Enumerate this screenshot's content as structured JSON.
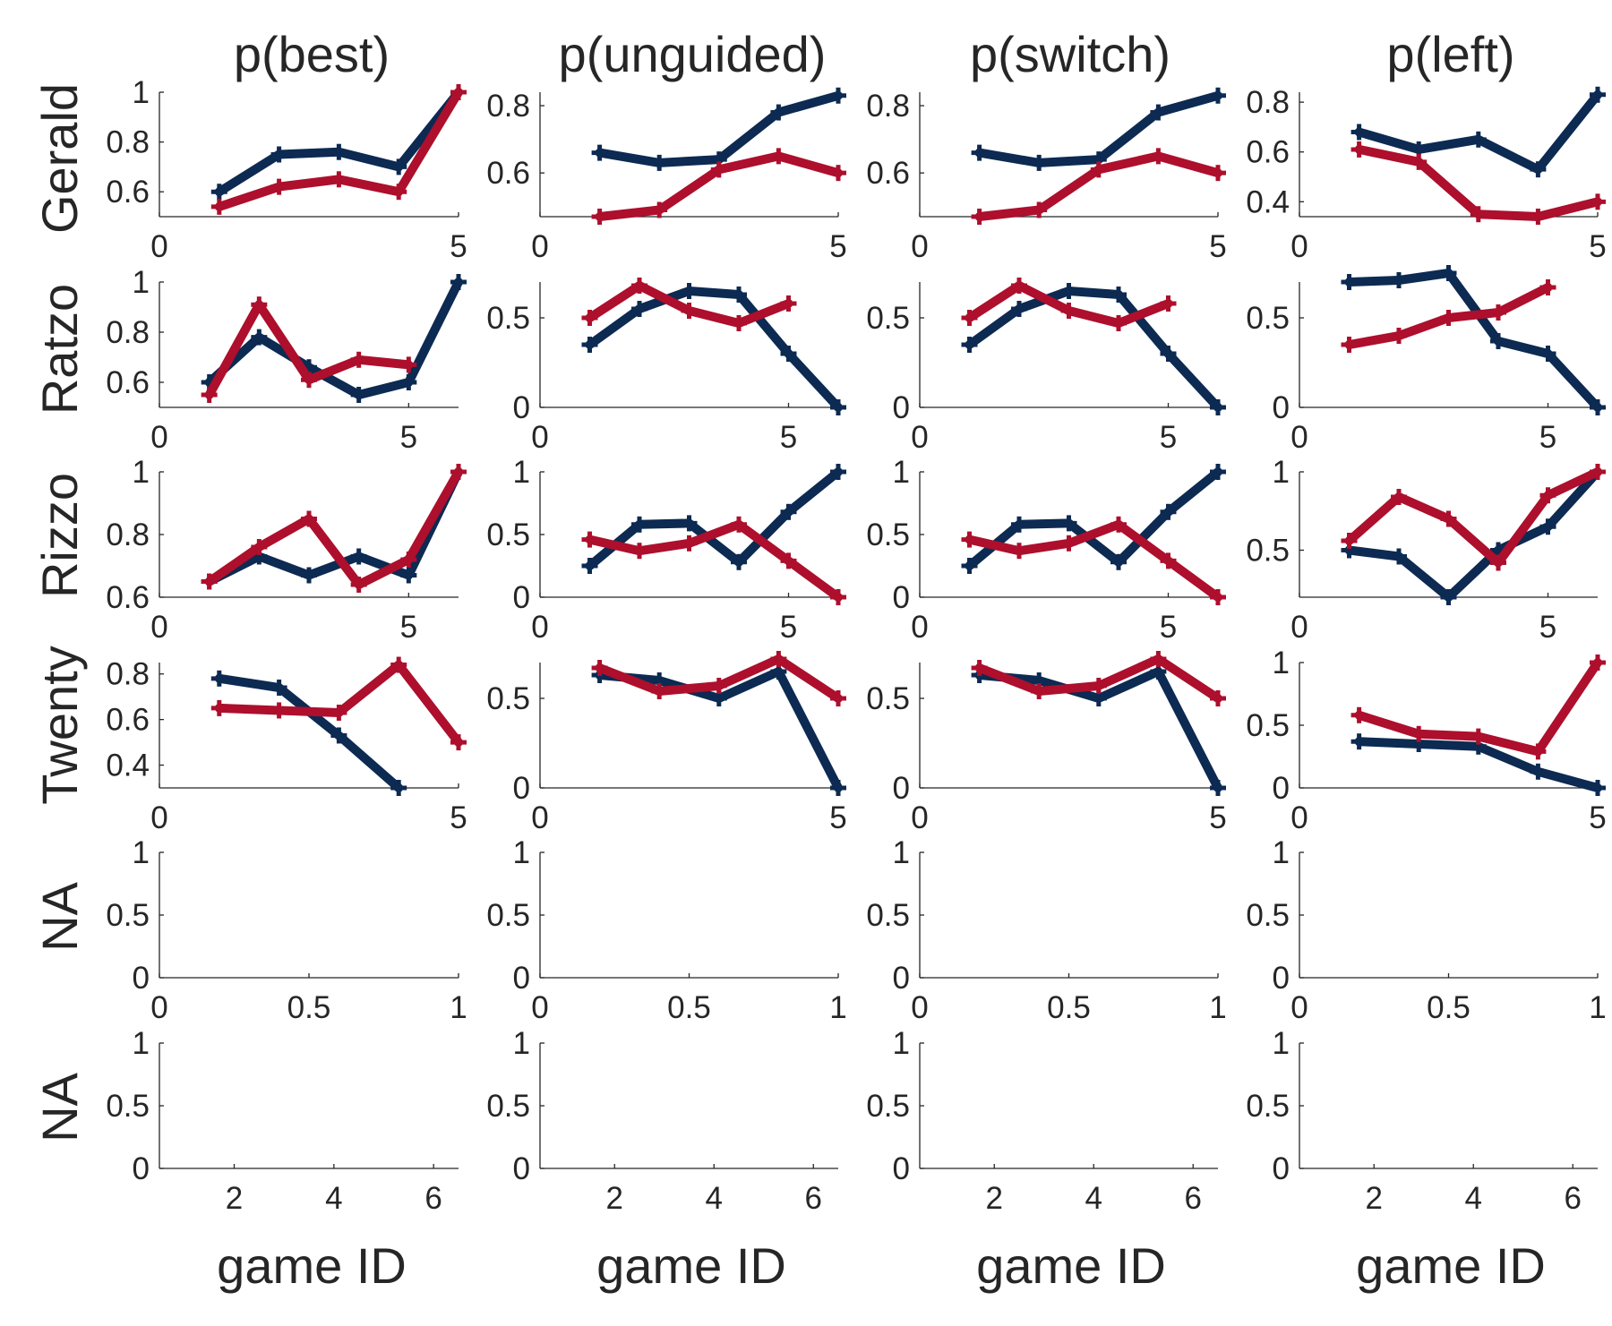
{
  "colors": {
    "blue": "#0c2a52",
    "red": "#ad0f2c",
    "axis": "#262626"
  },
  "column_titles": [
    "p(best)",
    "p(unguided)",
    "p(switch)",
    "p(left)"
  ],
  "row_labels": [
    "Gerald",
    "Ratzo",
    "Rizzo",
    "Twenty",
    "NA",
    "NA"
  ],
  "xlabel": "game ID",
  "chart_data": [
    {
      "type": "line",
      "row": "Gerald",
      "column": "p(best)",
      "xlim": [
        0,
        5
      ],
      "ylim": [
        0.5,
        1
      ],
      "xticks": [
        0,
        5
      ],
      "yticks": [
        0.6,
        0.8,
        1
      ],
      "yticklabels": [
        "0.6",
        "0.8",
        "1"
      ],
      "series": [
        {
          "color": "blue",
          "x": [
            1,
            2,
            3,
            4,
            5
          ],
          "y": [
            0.6,
            0.75,
            0.76,
            0.7,
            1
          ]
        },
        {
          "color": "red",
          "x": [
            1,
            2,
            3,
            4,
            5
          ],
          "y": [
            0.54,
            0.62,
            0.65,
            0.6,
            1
          ]
        }
      ]
    },
    {
      "type": "line",
      "row": "Gerald",
      "column": "p(unguided)",
      "xlim": [
        0,
        5
      ],
      "ylim": [
        0.47,
        0.84
      ],
      "xticks": [
        0,
        5
      ],
      "yticks": [
        0.6,
        0.8
      ],
      "yticklabels": [
        "0.6",
        "0.8"
      ],
      "series": [
        {
          "color": "blue",
          "x": [
            1,
            2,
            3,
            4,
            5
          ],
          "y": [
            0.66,
            0.63,
            0.64,
            0.78,
            0.83
          ]
        },
        {
          "color": "red",
          "x": [
            1,
            2,
            3,
            4,
            5
          ],
          "y": [
            0.47,
            0.49,
            0.61,
            0.65,
            0.6
          ]
        }
      ]
    },
    {
      "type": "line",
      "row": "Gerald",
      "column": "p(switch)",
      "xlim": [
        0,
        5
      ],
      "ylim": [
        0.47,
        0.84
      ],
      "xticks": [
        0,
        5
      ],
      "yticks": [
        0.6,
        0.8
      ],
      "yticklabels": [
        "0.6",
        "0.8"
      ],
      "series": [
        {
          "color": "blue",
          "x": [
            1,
            2,
            3,
            4,
            5
          ],
          "y": [
            0.66,
            0.63,
            0.64,
            0.78,
            0.83
          ]
        },
        {
          "color": "red",
          "x": [
            1,
            2,
            3,
            4,
            5
          ],
          "y": [
            0.47,
            0.49,
            0.61,
            0.65,
            0.6
          ]
        }
      ]
    },
    {
      "type": "line",
      "row": "Gerald",
      "column": "p(left)",
      "xlim": [
        0,
        5
      ],
      "ylim": [
        0.34,
        0.84
      ],
      "xticks": [
        0,
        5
      ],
      "yticks": [
        0.4,
        0.6,
        0.8
      ],
      "yticklabels": [
        "0.4",
        "0.6",
        "0.8"
      ],
      "series": [
        {
          "color": "blue",
          "x": [
            1,
            2,
            3,
            4,
            5
          ],
          "y": [
            0.68,
            0.61,
            0.65,
            0.53,
            0.83
          ]
        },
        {
          "color": "red",
          "x": [
            1,
            2,
            3,
            4,
            5
          ],
          "y": [
            0.61,
            0.56,
            0.35,
            0.34,
            0.4
          ]
        }
      ]
    },
    {
      "type": "line",
      "row": "Ratzo",
      "column": "p(best)",
      "xlim": [
        0,
        6
      ],
      "ylim": [
        0.5,
        1
      ],
      "xticks": [
        0,
        5
      ],
      "yticks": [
        0.6,
        0.8,
        1
      ],
      "yticklabels": [
        "0.6",
        "0.8",
        "1"
      ],
      "series": [
        {
          "color": "blue",
          "x": [
            1,
            2,
            3,
            4,
            5,
            6
          ],
          "y": [
            0.6,
            0.78,
            0.66,
            0.55,
            0.6,
            1
          ]
        },
        {
          "color": "red",
          "x": [
            1,
            2,
            3,
            4,
            5
          ],
          "y": [
            0.55,
            0.91,
            0.61,
            0.69,
            0.67
          ]
        }
      ]
    },
    {
      "type": "line",
      "row": "Ratzo",
      "column": "p(unguided)",
      "xlim": [
        0,
        6
      ],
      "ylim": [
        0,
        0.7
      ],
      "xticks": [
        0,
        5
      ],
      "yticks": [
        0,
        0.5
      ],
      "yticklabels": [
        "0",
        "0.5"
      ],
      "series": [
        {
          "color": "blue",
          "x": [
            1,
            2,
            3,
            4,
            5,
            6
          ],
          "y": [
            0.35,
            0.55,
            0.65,
            0.63,
            0.3,
            0
          ]
        },
        {
          "color": "red",
          "x": [
            1,
            2,
            3,
            4,
            5
          ],
          "y": [
            0.5,
            0.68,
            0.54,
            0.47,
            0.58
          ]
        }
      ]
    },
    {
      "type": "line",
      "row": "Ratzo",
      "column": "p(switch)",
      "xlim": [
        0,
        6
      ],
      "ylim": [
        0,
        0.7
      ],
      "xticks": [
        0,
        5
      ],
      "yticks": [
        0,
        0.5
      ],
      "yticklabels": [
        "0",
        "0.5"
      ],
      "series": [
        {
          "color": "blue",
          "x": [
            1,
            2,
            3,
            4,
            5,
            6
          ],
          "y": [
            0.35,
            0.55,
            0.65,
            0.63,
            0.3,
            0
          ]
        },
        {
          "color": "red",
          "x": [
            1,
            2,
            3,
            4,
            5
          ],
          "y": [
            0.5,
            0.68,
            0.54,
            0.47,
            0.58
          ]
        }
      ]
    },
    {
      "type": "line",
      "row": "Ratzo",
      "column": "p(left)",
      "xlim": [
        0,
        6
      ],
      "ylim": [
        0,
        0.7
      ],
      "xticks": [
        0,
        5
      ],
      "yticks": [
        0,
        0.5
      ],
      "yticklabels": [
        "0",
        "0.5"
      ],
      "series": [
        {
          "color": "blue",
          "x": [
            1,
            2,
            3,
            4,
            5,
            6
          ],
          "y": [
            0.7,
            0.71,
            0.75,
            0.37,
            0.3,
            0
          ]
        },
        {
          "color": "red",
          "x": [
            1,
            2,
            3,
            4,
            5
          ],
          "y": [
            0.35,
            0.4,
            0.5,
            0.53,
            0.67
          ]
        }
      ]
    },
    {
      "type": "line",
      "row": "Rizzo",
      "column": "p(best)",
      "xlim": [
        0,
        6
      ],
      "ylim": [
        0.6,
        1
      ],
      "xticks": [
        0,
        5
      ],
      "yticks": [
        0.6,
        0.8,
        1
      ],
      "yticklabels": [
        "0.6",
        "0.8",
        "1"
      ],
      "series": [
        {
          "color": "blue",
          "x": [
            1,
            2,
            3,
            4,
            5,
            6
          ],
          "y": [
            0.65,
            0.73,
            0.67,
            0.73,
            0.67,
            1
          ]
        },
        {
          "color": "red",
          "x": [
            1,
            2,
            3,
            4,
            5,
            6
          ],
          "y": [
            0.65,
            0.76,
            0.85,
            0.64,
            0.72,
            1
          ]
        }
      ]
    },
    {
      "type": "line",
      "row": "Rizzo",
      "column": "p(unguided)",
      "xlim": [
        0,
        6
      ],
      "ylim": [
        0,
        1
      ],
      "xticks": [
        0,
        5
      ],
      "yticks": [
        0,
        0.5,
        1
      ],
      "yticklabels": [
        "0",
        "0.5",
        "1"
      ],
      "series": [
        {
          "color": "blue",
          "x": [
            1,
            2,
            3,
            4,
            5,
            6
          ],
          "y": [
            0.25,
            0.58,
            0.59,
            0.28,
            0.68,
            1
          ]
        },
        {
          "color": "red",
          "x": [
            1,
            2,
            3,
            4,
            5,
            6
          ],
          "y": [
            0.46,
            0.37,
            0.43,
            0.58,
            0.29,
            0
          ]
        }
      ]
    },
    {
      "type": "line",
      "row": "Rizzo",
      "column": "p(switch)",
      "xlim": [
        0,
        6
      ],
      "ylim": [
        0,
        1
      ],
      "xticks": [
        0,
        5
      ],
      "yticks": [
        0,
        0.5,
        1
      ],
      "yticklabels": [
        "0",
        "0.5",
        "1"
      ],
      "series": [
        {
          "color": "blue",
          "x": [
            1,
            2,
            3,
            4,
            5,
            6
          ],
          "y": [
            0.25,
            0.58,
            0.59,
            0.28,
            0.68,
            1
          ]
        },
        {
          "color": "red",
          "x": [
            1,
            2,
            3,
            4,
            5,
            6
          ],
          "y": [
            0.46,
            0.37,
            0.43,
            0.58,
            0.29,
            0
          ]
        }
      ]
    },
    {
      "type": "line",
      "row": "Rizzo",
      "column": "p(left)",
      "xlim": [
        0,
        6
      ],
      "ylim": [
        0.2,
        1
      ],
      "xticks": [
        0,
        5
      ],
      "yticks": [
        0.5,
        1
      ],
      "yticklabels": [
        "0.5",
        "1"
      ],
      "series": [
        {
          "color": "blue",
          "x": [
            1,
            2,
            3,
            4,
            5,
            6
          ],
          "y": [
            0.5,
            0.46,
            0.2,
            0.5,
            0.65,
            1
          ]
        },
        {
          "color": "red",
          "x": [
            1,
            2,
            3,
            4,
            5,
            6
          ],
          "y": [
            0.56,
            0.84,
            0.7,
            0.42,
            0.85,
            1
          ]
        }
      ]
    },
    {
      "type": "line",
      "row": "Twenty",
      "column": "p(best)",
      "xlim": [
        0,
        5
      ],
      "ylim": [
        0.3,
        0.85
      ],
      "xticks": [
        0,
        5
      ],
      "yticks": [
        0.4,
        0.6,
        0.8
      ],
      "yticklabels": [
        "0.4",
        "0.6",
        "0.8"
      ],
      "series": [
        {
          "color": "blue",
          "x": [
            1,
            2,
            3,
            4
          ],
          "y": [
            0.78,
            0.74,
            0.53,
            0.3
          ]
        },
        {
          "color": "red",
          "x": [
            1,
            2,
            3,
            4,
            5
          ],
          "y": [
            0.65,
            0.64,
            0.63,
            0.84,
            0.5
          ]
        }
      ]
    },
    {
      "type": "line",
      "row": "Twenty",
      "column": "p(unguided)",
      "xlim": [
        0,
        5
      ],
      "ylim": [
        0,
        0.7
      ],
      "xticks": [
        0,
        5
      ],
      "yticks": [
        0,
        0.5
      ],
      "yticklabels": [
        "0",
        "0.5"
      ],
      "series": [
        {
          "color": "blue",
          "x": [
            1,
            2,
            3,
            4,
            5
          ],
          "y": [
            0.63,
            0.6,
            0.5,
            0.65,
            0
          ]
        },
        {
          "color": "red",
          "x": [
            1,
            2,
            3,
            4,
            5
          ],
          "y": [
            0.67,
            0.54,
            0.57,
            0.72,
            0.5
          ]
        }
      ]
    },
    {
      "type": "line",
      "row": "Twenty",
      "column": "p(switch)",
      "xlim": [
        0,
        5
      ],
      "ylim": [
        0,
        0.7
      ],
      "xticks": [
        0,
        5
      ],
      "yticks": [
        0,
        0.5
      ],
      "yticklabels": [
        "0",
        "0.5"
      ],
      "series": [
        {
          "color": "blue",
          "x": [
            1,
            2,
            3,
            4,
            5
          ],
          "y": [
            0.63,
            0.6,
            0.5,
            0.65,
            0
          ]
        },
        {
          "color": "red",
          "x": [
            1,
            2,
            3,
            4,
            5
          ],
          "y": [
            0.67,
            0.54,
            0.57,
            0.72,
            0.5
          ]
        }
      ]
    },
    {
      "type": "line",
      "row": "Twenty",
      "column": "p(left)",
      "xlim": [
        0,
        5
      ],
      "ylim": [
        0,
        1
      ],
      "xticks": [
        0,
        5
      ],
      "yticks": [
        0,
        0.5,
        1
      ],
      "yticklabels": [
        "0",
        "0.5",
        "1"
      ],
      "series": [
        {
          "color": "blue",
          "x": [
            1,
            2,
            3,
            4,
            5
          ],
          "y": [
            0.37,
            0.35,
            0.33,
            0.13,
            0
          ]
        },
        {
          "color": "red",
          "x": [
            1,
            2,
            3,
            4,
            5
          ],
          "y": [
            0.58,
            0.43,
            0.41,
            0.29,
            1
          ]
        }
      ]
    },
    {
      "type": "line",
      "row": "NA",
      "column": "p(best)",
      "xlim": [
        0,
        1
      ],
      "ylim": [
        0,
        1
      ],
      "xticks": [
        0,
        0.5,
        1
      ],
      "yticks": [
        0,
        0.5,
        1
      ],
      "xticklabels": [
        "0",
        "0.5",
        "1"
      ],
      "yticklabels": [
        "0",
        "0.5",
        "1"
      ],
      "series": []
    },
    {
      "type": "line",
      "row": "NA",
      "column": "p(unguided)",
      "xlim": [
        0,
        1
      ],
      "ylim": [
        0,
        1
      ],
      "xticks": [
        0,
        0.5,
        1
      ],
      "yticks": [
        0,
        0.5,
        1
      ],
      "xticklabels": [
        "0",
        "0.5",
        "1"
      ],
      "yticklabels": [
        "0",
        "0.5",
        "1"
      ],
      "series": []
    },
    {
      "type": "line",
      "row": "NA",
      "column": "p(switch)",
      "xlim": [
        0,
        1
      ],
      "ylim": [
        0,
        1
      ],
      "xticks": [
        0,
        0.5,
        1
      ],
      "yticks": [
        0,
        0.5,
        1
      ],
      "xticklabels": [
        "0",
        "0.5",
        "1"
      ],
      "yticklabels": [
        "0",
        "0.5",
        "1"
      ],
      "series": []
    },
    {
      "type": "line",
      "row": "NA",
      "column": "p(left)",
      "xlim": [
        0,
        1
      ],
      "ylim": [
        0,
        1
      ],
      "xticks": [
        0,
        0.5,
        1
      ],
      "yticks": [
        0,
        0.5,
        1
      ],
      "xticklabels": [
        "0",
        "0.5",
        "1"
      ],
      "yticklabels": [
        "0",
        "0.5",
        "1"
      ],
      "series": []
    },
    {
      "type": "line",
      "row": "NA",
      "column": "p(best)",
      "xlim": [
        0.5,
        6.5
      ],
      "ylim": [
        0,
        1
      ],
      "xticks": [
        2,
        4,
        6
      ],
      "yticks": [
        0,
        0.5,
        1
      ],
      "yticklabels": [
        "0",
        "0.5",
        "1"
      ],
      "series": []
    },
    {
      "type": "line",
      "row": "NA",
      "column": "p(unguided)",
      "xlim": [
        0.5,
        6.5
      ],
      "ylim": [
        0,
        1
      ],
      "xticks": [
        2,
        4,
        6
      ],
      "yticks": [
        0,
        0.5,
        1
      ],
      "yticklabels": [
        "0",
        "0.5",
        "1"
      ],
      "series": []
    },
    {
      "type": "line",
      "row": "NA",
      "column": "p(switch)",
      "xlim": [
        0.5,
        6.5
      ],
      "ylim": [
        0,
        1
      ],
      "xticks": [
        2,
        4,
        6
      ],
      "yticks": [
        0,
        0.5,
        1
      ],
      "yticklabels": [
        "0",
        "0.5",
        "1"
      ],
      "series": []
    },
    {
      "type": "line",
      "row": "NA",
      "column": "p(left)",
      "xlim": [
        0.5,
        6.5
      ],
      "ylim": [
        0,
        1
      ],
      "xticks": [
        2,
        4,
        6
      ],
      "yticks": [
        0,
        0.5,
        1
      ],
      "yticklabels": [
        "0",
        "0.5",
        "1"
      ],
      "series": []
    }
  ]
}
